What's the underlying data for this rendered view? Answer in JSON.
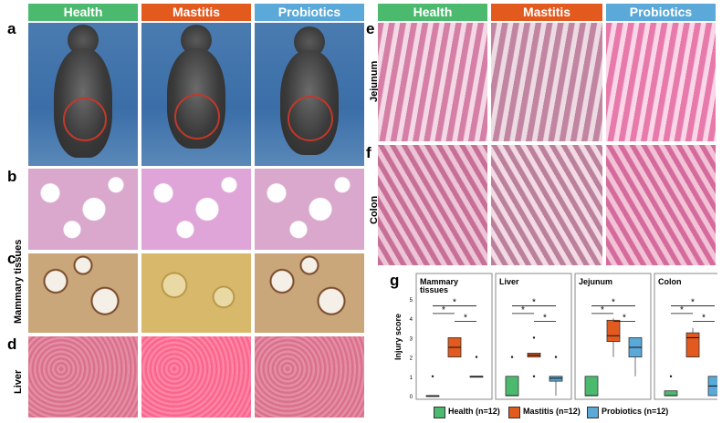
{
  "headers_left": [
    {
      "label": "Health",
      "color": "#4cba6e"
    },
    {
      "label": "Mastitis",
      "color": "#e35a1e"
    },
    {
      "label": "Probiotics",
      "color": "#5aa9d8"
    }
  ],
  "headers_right": [
    {
      "label": "Health",
      "color": "#4cba6e"
    },
    {
      "label": "Mastitis",
      "color": "#e35a1e"
    },
    {
      "label": "Probiotics",
      "color": "#5aa9d8"
    }
  ],
  "panel_letters": {
    "a": "a",
    "b": "b",
    "c": "c",
    "d": "d",
    "e": "e",
    "f": "f",
    "g": "g"
  },
  "row_labels": {
    "mammary": "Mammary tissues",
    "liver": "Liver",
    "jejunum": "Jejunum",
    "colon": "Colon"
  },
  "chart_data": {
    "type": "box",
    "ylabel": "Injury score",
    "yticks": [
      "0",
      "1",
      "2",
      "3",
      "4",
      "5"
    ],
    "ylim": [
      0,
      5
    ],
    "groups": [
      "Health",
      "Mastitis",
      "Probiotics"
    ],
    "group_colors": [
      "#4cba6e",
      "#e35a1e",
      "#5aa9d8"
    ],
    "panels": [
      {
        "title": "Mammary tissues",
        "boxes": [
          {
            "q1": 0,
            "median": 0,
            "q3": 0,
            "min": 0,
            "max": 0,
            "outliers": [
              1
            ]
          },
          {
            "q1": 2,
            "median": 2.5,
            "q3": 3,
            "min": 2,
            "max": 3,
            "outliers": []
          },
          {
            "q1": 1,
            "median": 1,
            "q3": 1,
            "min": 1,
            "max": 1,
            "outliers": [
              2
            ]
          }
        ],
        "sig": [
          "*",
          "*",
          "*"
        ]
      },
      {
        "title": "Liver",
        "boxes": [
          {
            "q1": 0,
            "median": 0,
            "q3": 1,
            "min": 0,
            "max": 1,
            "outliers": [
              2
            ]
          },
          {
            "q1": 2,
            "median": 2.1,
            "q3": 2.2,
            "min": 2,
            "max": 2.2,
            "outliers": [
              1,
              3
            ]
          },
          {
            "q1": 0.75,
            "median": 0.9,
            "q3": 1,
            "min": 0,
            "max": 1,
            "outliers": [
              2
            ]
          }
        ],
        "sig": [
          "*",
          "*",
          "*"
        ]
      },
      {
        "title": "Jejunum",
        "boxes": [
          {
            "q1": 0,
            "median": 0,
            "q3": 1,
            "min": 0,
            "max": 1,
            "outliers": []
          },
          {
            "q1": 2.8,
            "median": 3.1,
            "q3": 3.9,
            "min": 2,
            "max": 4,
            "outliers": []
          },
          {
            "q1": 2,
            "median": 2.5,
            "q3": 3,
            "min": 1,
            "max": 3,
            "outliers": []
          }
        ],
        "sig": [
          "*",
          "*",
          "*"
        ]
      },
      {
        "title": "Colon",
        "boxes": [
          {
            "q1": 0,
            "median": 0,
            "q3": 0.25,
            "min": 0,
            "max": 0.25,
            "outliers": [
              1
            ]
          },
          {
            "q1": 2,
            "median": 3,
            "q3": 3.25,
            "min": 2,
            "max": 3.5,
            "outliers": []
          },
          {
            "q1": 0,
            "median": 0.5,
            "q3": 1,
            "min": 0,
            "max": 1,
            "outliers": []
          }
        ],
        "sig": [
          "*",
          "*",
          "*"
        ]
      }
    ],
    "legend": [
      "Health (n=12)",
      "Mastitis (n=12)",
      "Probiotics (n=12)"
    ]
  }
}
